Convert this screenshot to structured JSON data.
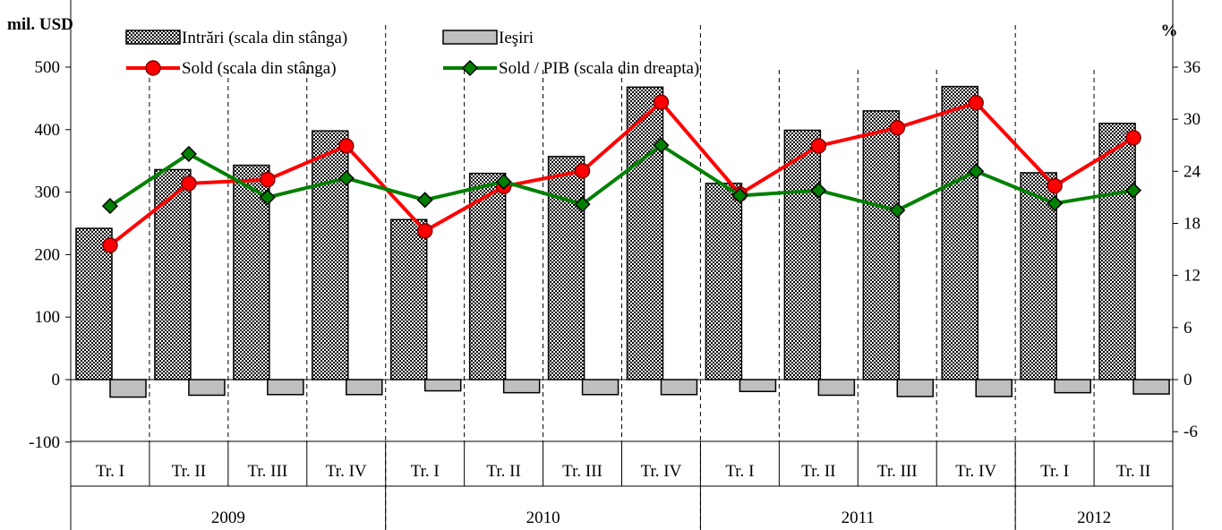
{
  "chart_data": {
    "type": "bar",
    "y_left_label": "mil. USD",
    "y_right_label": "%",
    "y_left_lim": [
      -100,
      500
    ],
    "y_left_ticks": [
      -100,
      0,
      100,
      200,
      300,
      400,
      500
    ],
    "y_right_lim": [
      -6,
      36
    ],
    "y_right_ticks": [
      -6,
      0,
      6,
      12,
      18,
      24,
      30,
      36
    ],
    "grid": false,
    "legend_position": "top",
    "categories": [
      "Tr. I",
      "Tr. II",
      "Tr. III",
      "Tr. IV",
      "Tr. I",
      "Tr. II",
      "Tr. III",
      "Tr. IV",
      "Tr. I",
      "Tr. II",
      "Tr. III",
      "Tr. IV",
      "Tr. I",
      "Tr. II"
    ],
    "year_groups": [
      {
        "label": "2009",
        "span": 4
      },
      {
        "label": "2010",
        "span": 4
      },
      {
        "label": "2011",
        "span": 4
      },
      {
        "label": "2012",
        "span": 2
      }
    ],
    "series": [
      {
        "name": "Intrări (scala din stânga)",
        "type": "bar",
        "axis": "left",
        "pattern": "checker",
        "values": [
          242,
          336,
          343,
          398,
          256,
          330,
          357,
          468,
          314,
          399,
          430,
          469,
          331,
          410
        ]
      },
      {
        "name": "Ieşiri",
        "type": "bar",
        "axis": "left",
        "color": "#bfbfbf",
        "values": [
          -28,
          -25,
          -24,
          -24,
          -18,
          -21,
          -24,
          -24,
          -19,
          -25,
          -27,
          -27,
          -21,
          -23
        ]
      },
      {
        "name": "Sold (scala din stânga)",
        "type": "line",
        "axis": "left",
        "color": "#ff0000",
        "marker": "circle",
        "marker_color": "#ff0000",
        "values": [
          215,
          314,
          320,
          374,
          238,
          309,
          334,
          444,
          297,
          374,
          403,
          443,
          310,
          387
        ]
      },
      {
        "name": "Sold / PIB (scala din dreapta)",
        "type": "line",
        "axis": "right",
        "color": "#008000",
        "marker": "diamond",
        "marker_color": "#008000",
        "values": [
          20.0,
          26.0,
          21.0,
          23.2,
          20.7,
          22.8,
          20.2,
          27.0,
          21.2,
          21.8,
          19.5,
          24.0,
          20.3,
          21.8
        ]
      }
    ]
  }
}
